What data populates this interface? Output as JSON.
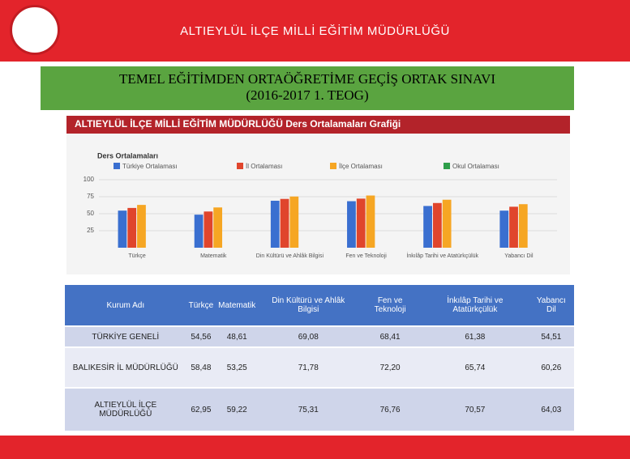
{
  "header": {
    "title": "ALTIEYLÜL İLÇE MİLLİ EĞİTİM MÜDÜRLÜĞÜ"
  },
  "banner": {
    "line1": "TEMEL EĞİTİMDEN ORTAÖĞRETİME GEÇİŞ ORTAK SINAVI",
    "line2": "(2016-2017 1. TEOG)"
  },
  "chart_data": {
    "type": "bar",
    "title": "ALTIEYLÜL İLÇE MİLLİ EĞİTİM MÜDÜRLÜĞÜ Ders Ortalamaları Grafiği",
    "legend_title": "Ders Ortalamaları",
    "categories": [
      "Türkçe",
      "Matematik",
      "Din Kültürü ve Ahlâk Bilgisi",
      "Fen ve Teknoloji",
      "İnkılâp Tarihi ve Atatürkçülük",
      "Yabancı Dil"
    ],
    "series": [
      {
        "name": "Türkiye Ortalaması",
        "color": "#3a6fd0",
        "values": [
          54.56,
          48.61,
          69.08,
          68.41,
          61.38,
          54.51
        ]
      },
      {
        "name": "İl Ortalaması",
        "color": "#e0452c",
        "values": [
          58.48,
          53.25,
          71.78,
          72.2,
          65.74,
          60.26
        ]
      },
      {
        "name": "İlçe Ortalaması",
        "color": "#f6a623",
        "values": [
          62.95,
          59.22,
          75.31,
          76.76,
          70.57,
          64.03
        ]
      },
      {
        "name": "Okul Ortalaması",
        "color": "#2e9e4a",
        "values": [
          null,
          null,
          null,
          null,
          null,
          null
        ]
      }
    ],
    "ylim": [
      0,
      100
    ],
    "yticks": [
      25,
      50,
      75,
      100
    ],
    "grid": true
  },
  "table": {
    "header": [
      "Kurum Adı",
      "Türkçe",
      "Matematik",
      "Din Kültürü ve Ahlâk Bilgisi",
      "Fen ve Teknoloji",
      "İnkılâp Tarihi ve Atatürkçülük",
      "Yabancı Dil"
    ],
    "rows": [
      [
        "TÜRKİYE GENELİ",
        "54,56",
        "48,61",
        "69,08",
        "68,41",
        "61,38",
        "54,51"
      ],
      [
        "BALIKESİR İL MÜDÜRLÜĞÜ",
        "58,48",
        "53,25",
        "71,78",
        "72,20",
        "65,74",
        "60,26"
      ],
      [
        "ALTIEYLÜL İLÇE MÜDÜRLÜĞÜ",
        "62,95",
        "59,22",
        "75,31",
        "76,76",
        "70,57",
        "64,03"
      ]
    ]
  }
}
